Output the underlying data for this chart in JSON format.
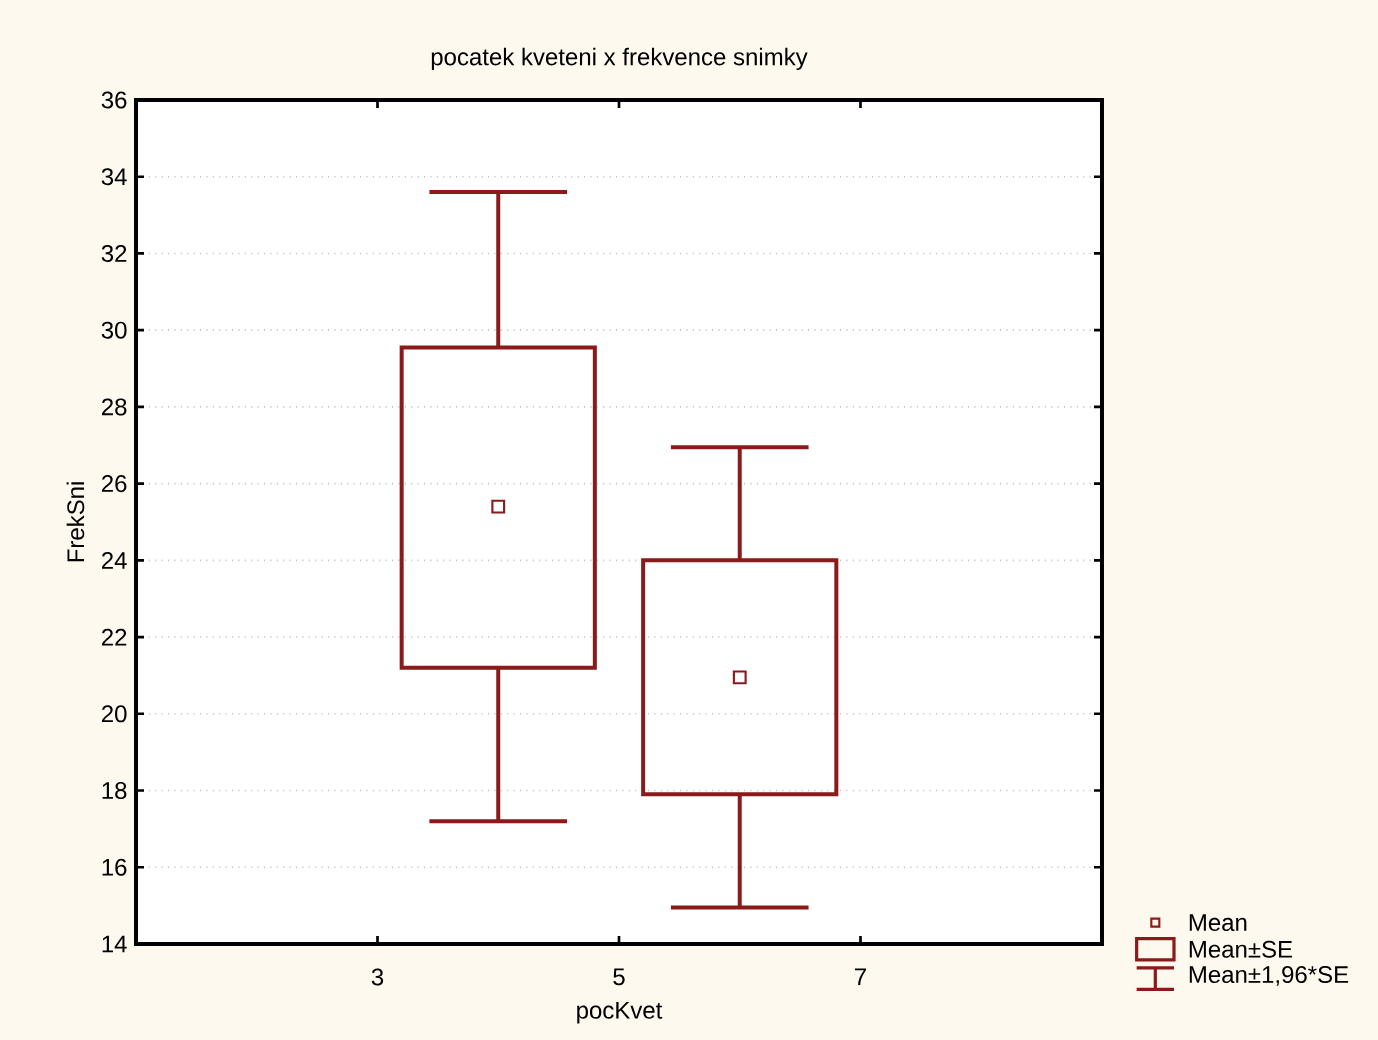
{
  "chart_data": {
    "type": "box",
    "title": "pocatek kveteni x frekvence snimky",
    "xlabel": "pocKvet",
    "ylabel": "FrekSni",
    "x": [
      4,
      6
    ],
    "xlim": [
      1,
      9
    ],
    "xticks": [
      3,
      5,
      7
    ],
    "ylim": [
      14,
      36
    ],
    "yticks": [
      14,
      16,
      18,
      20,
      22,
      24,
      26,
      28,
      30,
      32,
      34,
      36
    ],
    "grid": "y",
    "color": "#8b1a1a",
    "boxes": [
      {
        "low": 17.2,
        "q1": 21.2,
        "q3": 29.55,
        "high": 33.6,
        "mean": 25.4
      },
      {
        "low": 14.95,
        "q1": 17.9,
        "q3": 24.0,
        "high": 26.95,
        "mean": 20.95
      }
    ],
    "annotations": [
      "Mean",
      "Mean±SE",
      "Mean±1,96*SE"
    ]
  }
}
